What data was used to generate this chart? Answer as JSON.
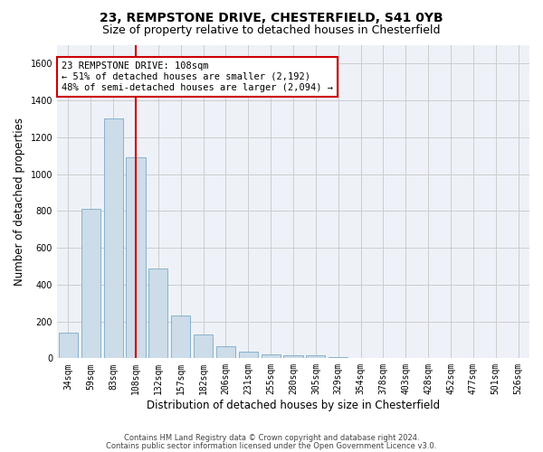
{
  "title1": "23, REMPSTONE DRIVE, CHESTERFIELD, S41 0YB",
  "title2": "Size of property relative to detached houses in Chesterfield",
  "xlabel": "Distribution of detached houses by size in Chesterfield",
  "ylabel": "Number of detached properties",
  "categories": [
    "34sqm",
    "59sqm",
    "83sqm",
    "108sqm",
    "132sqm",
    "157sqm",
    "182sqm",
    "206sqm",
    "231sqm",
    "255sqm",
    "280sqm",
    "305sqm",
    "329sqm",
    "354sqm",
    "378sqm",
    "403sqm",
    "428sqm",
    "452sqm",
    "477sqm",
    "501sqm",
    "526sqm"
  ],
  "values": [
    140,
    810,
    1300,
    1090,
    490,
    230,
    130,
    65,
    35,
    20,
    15,
    15,
    8,
    3,
    2,
    1,
    1,
    1,
    0,
    0,
    0
  ],
  "bar_color": "#ccdce8",
  "bar_edgecolor": "#7aaac8",
  "highlight_index": 3,
  "highlight_color": "#cc0000",
  "annotation_line1": "23 REMPSTONE DRIVE: 108sqm",
  "annotation_line2": "← 51% of detached houses are smaller (2,192)",
  "annotation_line3": "48% of semi-detached houses are larger (2,094) →",
  "annotation_box_edgecolor": "#cc0000",
  "ylim": [
    0,
    1700
  ],
  "yticks": [
    0,
    200,
    400,
    600,
    800,
    1000,
    1200,
    1400,
    1600
  ],
  "grid_color": "#cccccc",
  "background_color": "#eef2f8",
  "footer1": "Contains HM Land Registry data © Crown copyright and database right 2024.",
  "footer2": "Contains public sector information licensed under the Open Government Licence v3.0.",
  "title1_fontsize": 10,
  "title2_fontsize": 9,
  "tick_fontsize": 7,
  "ylabel_fontsize": 8.5,
  "xlabel_fontsize": 8.5,
  "annotation_fontsize": 7.5,
  "footer_fontsize": 6
}
